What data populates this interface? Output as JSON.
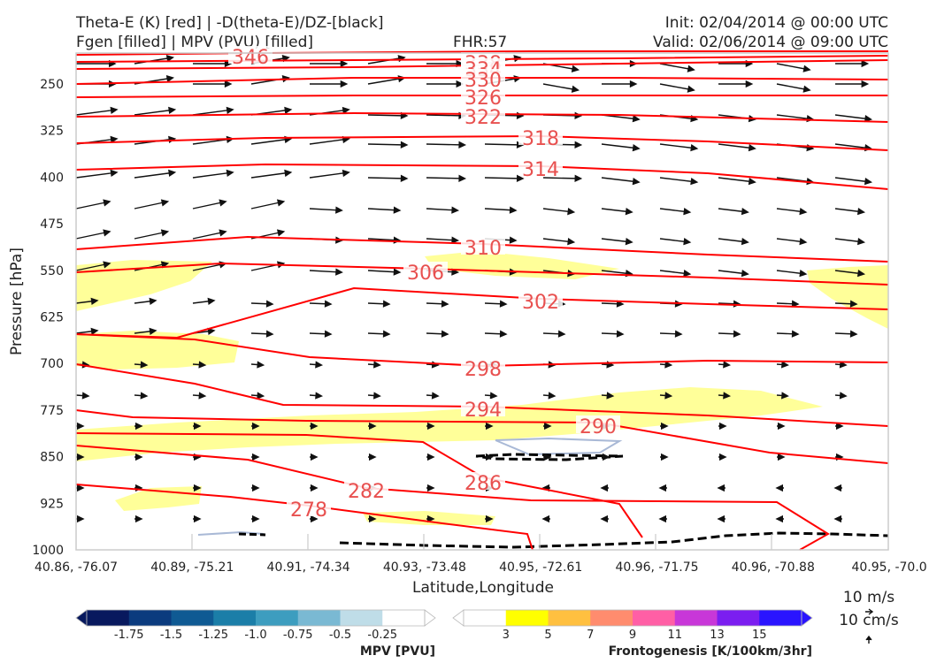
{
  "header": {
    "title_line1": "Theta-E (K) [red] | -D(theta-E)/DZ-[black]",
    "title_line2": "Fgen [filled] | MPV (PVU) [filled]",
    "fhr": "FHR:57",
    "init": "Init: 02/04/2014 @ 00:00 UTC",
    "valid": "Valid: 02/06/2014 @ 09:00 UTC"
  },
  "chart_data": {
    "type": "cross-section",
    "xlabel": "Latitude,Longitude",
    "ylabel": "Pressure [hPa]",
    "x_ticks": [
      "40.86, -76.07",
      "40.89, -75.21",
      "40.91, -74.34",
      "40.93, -73.48",
      "40.95, -72.61",
      "40.96, -71.75",
      "40.96, -70.88",
      "40.95, -70.0"
    ],
    "y_ticks": [
      250,
      325,
      400,
      475,
      550,
      625,
      700,
      775,
      850,
      925,
      1000
    ],
    "ylim": [
      1000,
      190
    ],
    "y_inverted": true,
    "theta_e_contours": [
      {
        "level": "346"
      },
      {
        "level": "338"
      },
      {
        "level": "334"
      },
      {
        "level": "330"
      },
      {
        "level": "326"
      },
      {
        "level": "322"
      },
      {
        "level": "318"
      },
      {
        "level": "314"
      },
      {
        "level": "310"
      },
      {
        "level": "306"
      },
      {
        "level": "302"
      },
      {
        "level": "298"
      },
      {
        "level": "294"
      },
      {
        "level": "290"
      },
      {
        "level": "286"
      },
      {
        "level": "282"
      },
      {
        "level": "278"
      }
    ],
    "wind_reference": {
      "horizontal": "10 m/s",
      "vertical": "10 cm/s"
    },
    "mpv_colorbar": {
      "title": "MPV [PVU]",
      "ticks": [
        "-1.75",
        "-1.5",
        "-1.25",
        "-1.0",
        "-0.75",
        "-0.5",
        "-0.25"
      ],
      "colors": [
        "#08195e",
        "#0b3b7e",
        "#0f5a93",
        "#1b7ea8",
        "#3d9dbf",
        "#7ab9d3",
        "#bfdde8",
        "#ffffff"
      ]
    },
    "fgen_colorbar": {
      "title": "Frontogenesis [K/100km/3hr]",
      "ticks": [
        "3",
        "5",
        "7",
        "9",
        "11",
        "13",
        "15"
      ],
      "colors": [
        "#ffffff",
        "#ffff00",
        "#ffc040",
        "#ff8c6e",
        "#ff5fa5",
        "#c837d8",
        "#7b1ef0",
        "#2a14ff"
      ]
    },
    "colors": {
      "theta_e": "#ff0000",
      "theta_e_label": "#e8504f",
      "fgen_fill": "#ffff99",
      "mpv_line": "#a9b9d6",
      "wind_arrow": "#111111"
    }
  }
}
